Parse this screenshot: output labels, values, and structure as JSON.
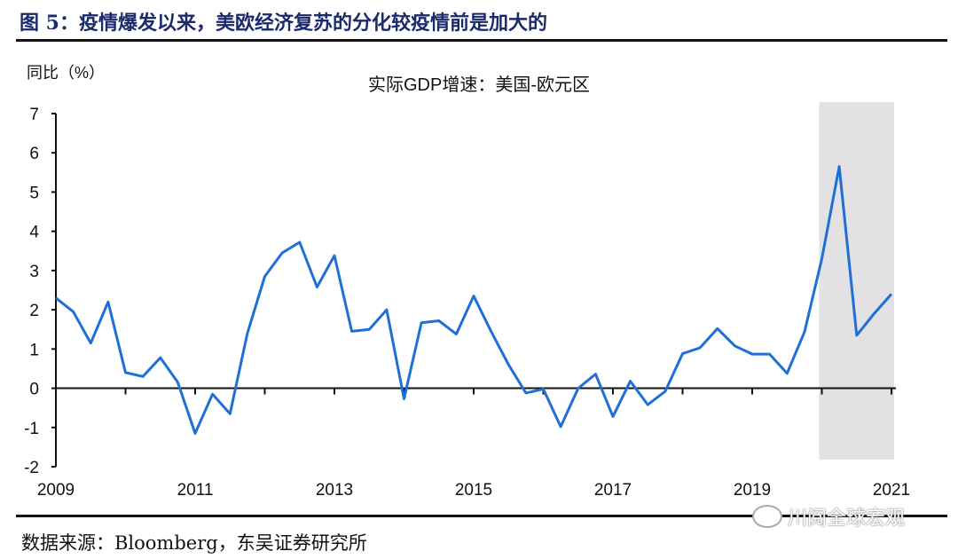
{
  "figure_title": "图 5：疫情爆发以来，美欧经济复苏的分化较疫情前是加大的",
  "source": "数据来源：Bloomberg，东吴证券研究所",
  "watermark": "川阅全球宏观",
  "chart_data": {
    "type": "line",
    "title": "实际GDP增速：美国-欧元区",
    "ylabel": "同比（%）",
    "xlabel": "",
    "ylim": [
      -2,
      7
    ],
    "yticks": [
      -2,
      -1,
      0,
      1,
      2,
      3,
      4,
      5,
      6,
      7
    ],
    "xlim": [
      2009,
      2021
    ],
    "xticks": [
      "2009",
      "2011",
      "2013",
      "2015",
      "2017",
      "2019",
      "2021"
    ],
    "frequency": "quarterly",
    "start": "2009Q1",
    "grid": false,
    "line_color": "#1f6fd6",
    "shaded_region": {
      "from": "2020Q1",
      "to": "2021Q1",
      "color": "#e2e2e4"
    },
    "values": [
      2.3,
      1.95,
      1.15,
      2.2,
      0.4,
      0.3,
      0.78,
      0.15,
      -1.15,
      -0.15,
      -0.65,
      1.4,
      2.85,
      3.45,
      3.72,
      2.58,
      3.38,
      1.45,
      1.5,
      2.0,
      -0.27,
      1.67,
      1.72,
      1.38,
      2.35,
      1.45,
      0.6,
      -0.12,
      -0.02,
      -0.98,
      0.0,
      0.36,
      -0.72,
      0.18,
      -0.42,
      -0.08,
      0.88,
      1.03,
      1.52,
      1.08,
      0.87,
      0.87,
      0.38,
      1.43,
      3.3,
      5.65,
      1.35,
      1.9,
      2.4
    ]
  }
}
